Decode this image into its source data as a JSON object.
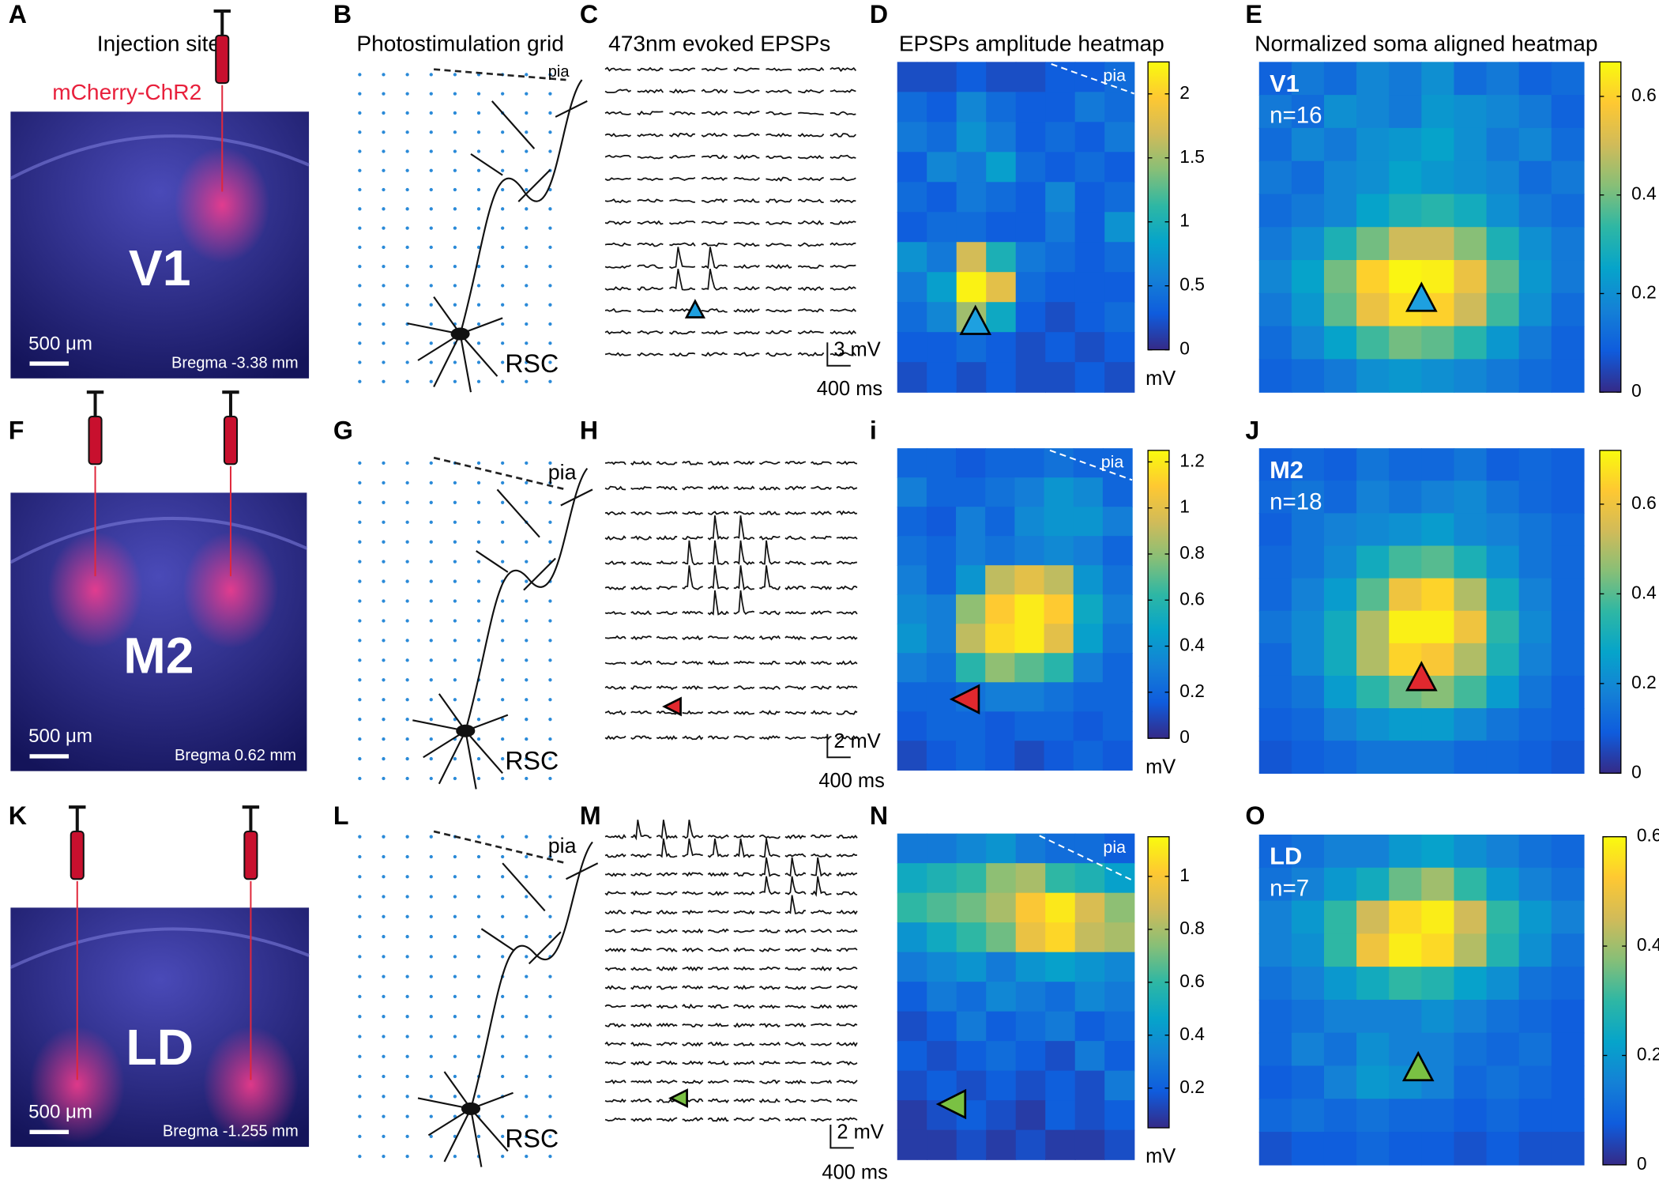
{
  "rows": [
    {
      "injection": {
        "label": "A",
        "title": "Injection site",
        "tracer": "mCherry-ChR2",
        "region": "V1",
        "scale": "500 μm",
        "bregma": "Bregma -3.38 mm"
      },
      "grid": {
        "label": "B",
        "title": "Photostimulation grid",
        "pia": "pia",
        "area": "RSC"
      },
      "traces": {
        "label": "C",
        "title": "473nm evoked EPSPs",
        "scale_y": "3 mV",
        "scale_x": "400 ms"
      },
      "heatmap": {
        "label": "D",
        "title": "EPSPs amplitude heatmap",
        "pia": "pia",
        "unit": "mV",
        "marker_color": "#1ea0e0",
        "clim": [
          0,
          2.25
        ],
        "ticks": [
          0,
          0.5,
          1,
          1.5,
          2
        ],
        "cells": [
          [
            0.2,
            0.2,
            0.3,
            0.2,
            0.2,
            0.3,
            0.3,
            0.4
          ],
          [
            0.4,
            0.3,
            0.6,
            0.4,
            0.3,
            0.3,
            0.5,
            0.4
          ],
          [
            0.5,
            0.4,
            0.7,
            0.5,
            0.3,
            0.4,
            0.3,
            0.5
          ],
          [
            0.3,
            0.6,
            0.5,
            0.8,
            0.4,
            0.3,
            0.4,
            0.3
          ],
          [
            0.4,
            0.3,
            0.5,
            0.4,
            0.3,
            0.6,
            0.3,
            0.4
          ],
          [
            0.3,
            0.4,
            0.4,
            0.3,
            0.3,
            0.5,
            0.3,
            0.7
          ],
          [
            0.7,
            0.5,
            1.7,
            1.0,
            0.5,
            0.4,
            0.3,
            0.4
          ],
          [
            0.5,
            0.8,
            2.2,
            1.8,
            0.4,
            0.3,
            0.3,
            0.3
          ],
          [
            0.4,
            0.6,
            1.5,
            0.9,
            0.3,
            0.2,
            0.3,
            0.4
          ],
          [
            0.3,
            0.3,
            0.4,
            0.3,
            0.2,
            0.3,
            0.2,
            0.3
          ],
          [
            0.2,
            0.3,
            0.2,
            0.3,
            0.2,
            0.2,
            0.3,
            0.2
          ]
        ]
      },
      "normalized": {
        "label": "E",
        "title": "Normalized soma aligned heatmap",
        "region": "V1",
        "n": "n=16",
        "clim": [
          0,
          0.67
        ],
        "ticks": [
          0,
          0.2,
          0.4,
          0.6
        ],
        "cells": [
          [
            0.1,
            0.15,
            0.12,
            0.18,
            0.15,
            0.2,
            0.12,
            0.15,
            0.1,
            0.12
          ],
          [
            0.15,
            0.12,
            0.2,
            0.18,
            0.15,
            0.22,
            0.2,
            0.18,
            0.15,
            0.1
          ],
          [
            0.12,
            0.18,
            0.15,
            0.2,
            0.22,
            0.25,
            0.2,
            0.15,
            0.18,
            0.12
          ],
          [
            0.15,
            0.12,
            0.18,
            0.2,
            0.25,
            0.22,
            0.2,
            0.18,
            0.12,
            0.15
          ],
          [
            0.12,
            0.15,
            0.18,
            0.25,
            0.3,
            0.32,
            0.28,
            0.2,
            0.15,
            0.12
          ],
          [
            0.15,
            0.2,
            0.3,
            0.4,
            0.5,
            0.5,
            0.42,
            0.3,
            0.2,
            0.15
          ],
          [
            0.18,
            0.25,
            0.4,
            0.6,
            0.66,
            0.65,
            0.55,
            0.38,
            0.22,
            0.15
          ],
          [
            0.15,
            0.22,
            0.38,
            0.55,
            0.62,
            0.6,
            0.5,
            0.35,
            0.2,
            0.12
          ],
          [
            0.12,
            0.18,
            0.25,
            0.35,
            0.4,
            0.38,
            0.32,
            0.22,
            0.15,
            0.1
          ],
          [
            0.1,
            0.12,
            0.15,
            0.2,
            0.22,
            0.2,
            0.18,
            0.15,
            0.12,
            0.1
          ]
        ]
      }
    },
    {
      "injection": {
        "label": "F",
        "region": "M2",
        "scale": "500 μm",
        "bregma": "Bregma 0.62 mm"
      },
      "grid": {
        "label": "G",
        "pia": "pia",
        "area": "RSC"
      },
      "traces": {
        "label": "H",
        "scale_y": "2 mV",
        "scale_x": "400 ms"
      },
      "heatmap": {
        "label": "i",
        "pia": "pia",
        "unit": "mV",
        "marker_color": "#e0282e",
        "clim": [
          0,
          1.25
        ],
        "ticks": [
          0,
          0.2,
          0.4,
          0.6,
          0.8,
          1,
          1.2
        ],
        "cells": [
          [
            0.2,
            0.2,
            0.15,
            0.2,
            0.2,
            0.25,
            0.2,
            0.2
          ],
          [
            0.3,
            0.2,
            0.2,
            0.25,
            0.3,
            0.4,
            0.35,
            0.2
          ],
          [
            0.2,
            0.15,
            0.3,
            0.2,
            0.35,
            0.4,
            0.4,
            0.3
          ],
          [
            0.25,
            0.2,
            0.3,
            0.25,
            0.3,
            0.35,
            0.3,
            0.2
          ],
          [
            0.3,
            0.2,
            0.4,
            0.9,
            1.0,
            0.9,
            0.4,
            0.25
          ],
          [
            0.35,
            0.3,
            0.8,
            1.1,
            1.2,
            1.1,
            0.5,
            0.3
          ],
          [
            0.4,
            0.3,
            0.9,
            1.15,
            1.2,
            1.0,
            0.45,
            0.25
          ],
          [
            0.3,
            0.25,
            0.6,
            0.8,
            0.7,
            0.6,
            0.3,
            0.2
          ],
          [
            0.2,
            0.2,
            0.25,
            0.3,
            0.3,
            0.25,
            0.2,
            0.2
          ],
          [
            0.15,
            0.2,
            0.2,
            0.15,
            0.2,
            0.2,
            0.15,
            0.2
          ],
          [
            0.1,
            0.15,
            0.2,
            0.15,
            0.1,
            0.15,
            0.2,
            0.15
          ]
        ]
      },
      "normalized": {
        "label": "J",
        "region": "M2",
        "n": "n=18",
        "clim": [
          0,
          0.72
        ],
        "ticks": [
          0,
          0.2,
          0.4,
          0.6
        ],
        "cells": [
          [
            0.1,
            0.12,
            0.1,
            0.15,
            0.12,
            0.12,
            0.15,
            0.1,
            0.12,
            0.1
          ],
          [
            0.12,
            0.15,
            0.12,
            0.18,
            0.15,
            0.18,
            0.2,
            0.15,
            0.12,
            0.1
          ],
          [
            0.1,
            0.15,
            0.18,
            0.2,
            0.22,
            0.25,
            0.2,
            0.18,
            0.15,
            0.12
          ],
          [
            0.12,
            0.15,
            0.2,
            0.3,
            0.38,
            0.4,
            0.32,
            0.22,
            0.15,
            0.12
          ],
          [
            0.12,
            0.18,
            0.25,
            0.4,
            0.6,
            0.65,
            0.5,
            0.3,
            0.18,
            0.12
          ],
          [
            0.15,
            0.2,
            0.3,
            0.5,
            0.7,
            0.7,
            0.6,
            0.35,
            0.2,
            0.12
          ],
          [
            0.12,
            0.2,
            0.3,
            0.5,
            0.65,
            0.62,
            0.5,
            0.32,
            0.18,
            0.12
          ],
          [
            0.12,
            0.15,
            0.25,
            0.35,
            0.42,
            0.45,
            0.38,
            0.25,
            0.15,
            0.1
          ],
          [
            0.1,
            0.12,
            0.18,
            0.22,
            0.25,
            0.25,
            0.2,
            0.15,
            0.12,
            0.1
          ],
          [
            0.08,
            0.1,
            0.12,
            0.15,
            0.15,
            0.15,
            0.12,
            0.12,
            0.1,
            0.08
          ]
        ]
      }
    },
    {
      "injection": {
        "label": "K",
        "region": "LD",
        "scale": "500 μm",
        "bregma": "Bregma -1.255 mm"
      },
      "grid": {
        "label": "L",
        "pia": "pia",
        "area": "RSC"
      },
      "traces": {
        "label": "M",
        "scale_y": "2 mV",
        "scale_x": "400 ms"
      },
      "heatmap": {
        "label": "N",
        "pia": "pia",
        "unit": "mV",
        "marker_color": "#7ac143",
        "clim": [
          0.05,
          1.15
        ],
        "ticks": [
          0.2,
          0.4,
          0.6,
          0.8,
          1
        ],
        "cells": [
          [
            0.3,
            0.3,
            0.35,
            0.4,
            0.3,
            0.25,
            0.25,
            0.2
          ],
          [
            0.5,
            0.55,
            0.6,
            0.75,
            0.8,
            0.6,
            0.55,
            0.45
          ],
          [
            0.6,
            0.65,
            0.7,
            0.8,
            1.0,
            1.1,
            0.9,
            0.75
          ],
          [
            0.4,
            0.5,
            0.6,
            0.7,
            0.95,
            1.05,
            0.85,
            0.8
          ],
          [
            0.3,
            0.35,
            0.4,
            0.3,
            0.4,
            0.45,
            0.4,
            0.35
          ],
          [
            0.2,
            0.3,
            0.25,
            0.35,
            0.3,
            0.25,
            0.35,
            0.3
          ],
          [
            0.15,
            0.2,
            0.3,
            0.2,
            0.25,
            0.3,
            0.2,
            0.25
          ],
          [
            0.2,
            0.15,
            0.2,
            0.25,
            0.2,
            0.15,
            0.3,
            0.2
          ],
          [
            0.15,
            0.2,
            0.15,
            0.2,
            0.15,
            0.2,
            0.15,
            0.3
          ],
          [
            0.1,
            0.15,
            0.2,
            0.15,
            0.1,
            0.2,
            0.15,
            0.2
          ],
          [
            0.1,
            0.1,
            0.15,
            0.1,
            0.15,
            0.1,
            0.1,
            0.15
          ]
        ]
      },
      "normalized": {
        "label": "O",
        "region": "LD",
        "n": "n=7",
        "clim": [
          0,
          0.6
        ],
        "ticks": [
          0,
          0.2,
          0.4,
          0.6
        ],
        "cells": [
          [
            0.1,
            0.12,
            0.15,
            0.15,
            0.2,
            0.22,
            0.18,
            0.15,
            0.12,
            0.1
          ],
          [
            0.12,
            0.15,
            0.2,
            0.25,
            0.35,
            0.4,
            0.3,
            0.2,
            0.15,
            0.12
          ],
          [
            0.15,
            0.2,
            0.3,
            0.45,
            0.55,
            0.58,
            0.45,
            0.3,
            0.2,
            0.15
          ],
          [
            0.15,
            0.18,
            0.3,
            0.5,
            0.58,
            0.55,
            0.42,
            0.28,
            0.18,
            0.12
          ],
          [
            0.12,
            0.15,
            0.2,
            0.25,
            0.3,
            0.28,
            0.22,
            0.18,
            0.12,
            0.1
          ],
          [
            0.1,
            0.12,
            0.15,
            0.15,
            0.15,
            0.18,
            0.15,
            0.12,
            0.1,
            0.08
          ],
          [
            0.1,
            0.15,
            0.12,
            0.18,
            0.15,
            0.15,
            0.12,
            0.1,
            0.12,
            0.08
          ],
          [
            0.08,
            0.1,
            0.15,
            0.2,
            0.18,
            0.15,
            0.1,
            0.12,
            0.1,
            0.08
          ],
          [
            0.1,
            0.12,
            0.1,
            0.12,
            0.1,
            0.1,
            0.08,
            0.1,
            0.08,
            0.08
          ],
          [
            0.06,
            0.08,
            0.08,
            0.1,
            0.08,
            0.08,
            0.06,
            0.08,
            0.06,
            0.06
          ]
        ]
      }
    }
  ]
}
